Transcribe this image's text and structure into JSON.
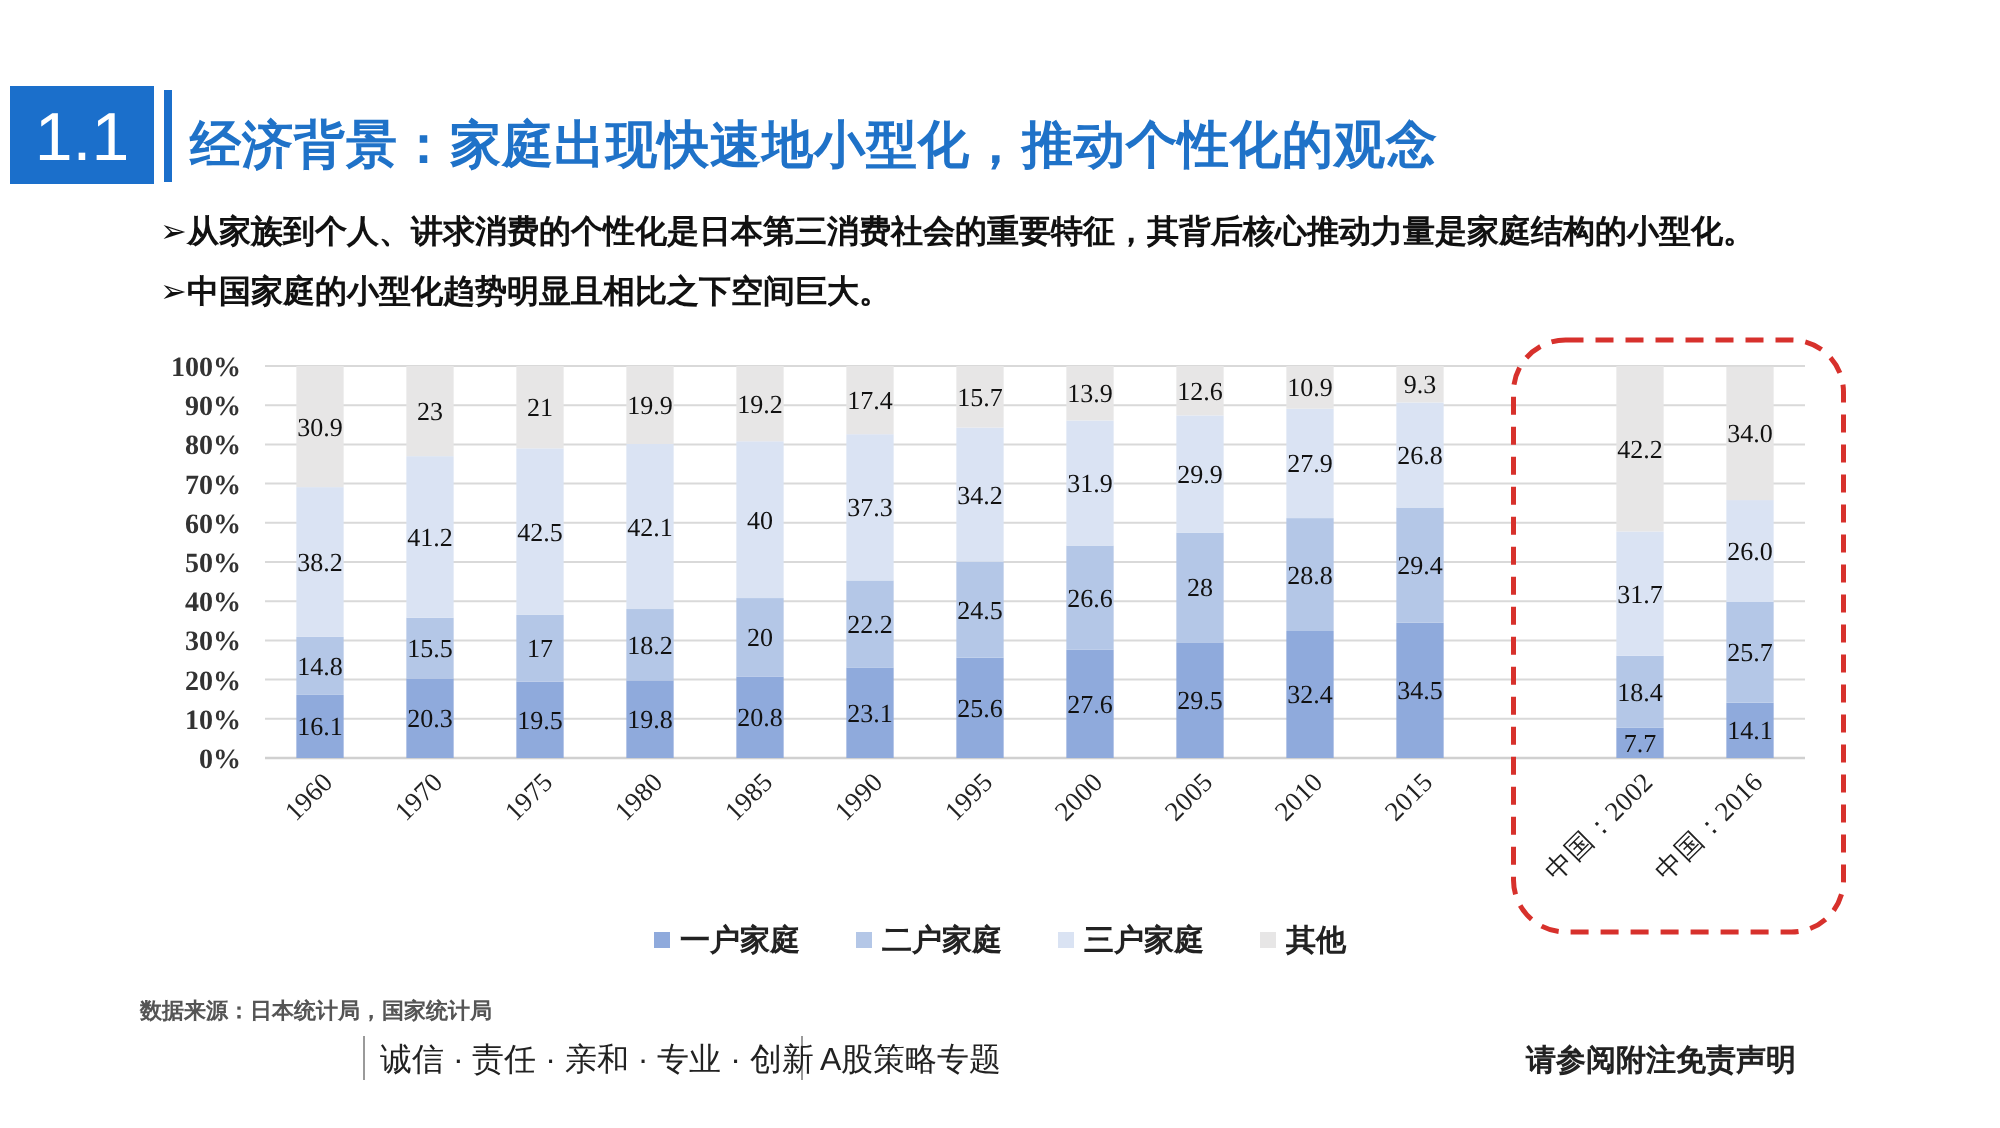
{
  "chart_data": {
    "type": "bar",
    "stacked": true,
    "title": "经济背景：家庭出现快速地小型化，推动个性化的观念",
    "annotations": [
      "1.1",
      "➢从家族到个人、讲求消费的个性化是日本第三消费社会的重要特征，其背后核心推动力量是家庭结构的小型化。",
      "➢中国家庭的小型化趋势明显且相比之下空间巨大。",
      "数据来源：日本统计局，国家统计局",
      "诚信 · 责任 · 亲和 · 专业 · 创新",
      "A股策略专题",
      "请参阅附注免责声明"
    ],
    "categories": [
      "1960",
      "1970",
      "1975",
      "1980",
      "1985",
      "1990",
      "1995",
      "2000",
      "2005",
      "2010",
      "2015",
      null,
      "中国：2002",
      "中国：2016"
    ],
    "series": [
      {
        "name": "一户家庭",
        "color": "#8faadc",
        "values": [
          16.1,
          20.3,
          19.5,
          19.8,
          20.8,
          23.1,
          25.6,
          27.6,
          29.5,
          32.4,
          34.5,
          null,
          7.7,
          14.1
        ],
        "value_labels": [
          "16.1",
          "20.3",
          "19.5",
          "19.8",
          "20.8",
          "23.1",
          "25.6",
          "27.6",
          "29.5",
          "32.4",
          "34.5",
          null,
          "7.7",
          "14.1"
        ]
      },
      {
        "name": "二户家庭",
        "color": "#b4c7e7",
        "values": [
          14.8,
          15.5,
          17,
          18.2,
          20,
          22.2,
          24.5,
          26.6,
          28,
          28.8,
          29.4,
          null,
          18.4,
          25.7
        ],
        "value_labels": [
          "14.8",
          "15.5",
          "17",
          "18.2",
          "20",
          "22.2",
          "24.5",
          "26.6",
          "28",
          "28.8",
          "29.4",
          null,
          "18.4",
          "25.7"
        ]
      },
      {
        "name": "三户家庭",
        "color": "#dae3f3",
        "values": [
          38.2,
          41.2,
          42.5,
          42.1,
          40,
          37.3,
          34.2,
          31.9,
          29.9,
          27.9,
          26.8,
          null,
          31.7,
          26.0
        ],
        "value_labels": [
          "38.2",
          "41.2",
          "42.5",
          "42.1",
          "40",
          "37.3",
          "34.2",
          "31.9",
          "29.9",
          "27.9",
          "26.8",
          null,
          "31.7",
          "26.0"
        ]
      },
      {
        "name": "其他",
        "color": "#e7e6e6",
        "values": [
          30.9,
          23,
          21,
          19.9,
          19.2,
          17.4,
          15.7,
          13.9,
          12.6,
          10.9,
          9.3,
          null,
          42.2,
          34.0
        ],
        "value_labels": [
          "30.9",
          "23",
          "21",
          "19.9",
          "19.2",
          "17.4",
          "15.7",
          "13.9",
          "12.6",
          "10.9",
          "9.3",
          null,
          "42.2",
          "34.0"
        ]
      }
    ],
    "ylim": [
      0,
      100
    ],
    "yticks": [
      {
        "value": 0,
        "label": "0%"
      },
      {
        "value": 10,
        "label": "10%"
      },
      {
        "value": 20,
        "label": "20%"
      },
      {
        "value": 30,
        "label": "30%"
      },
      {
        "value": 40,
        "label": "40%"
      },
      {
        "value": 50,
        "label": "50%"
      },
      {
        "value": 60,
        "label": "60%"
      },
      {
        "value": 70,
        "label": "70%"
      },
      {
        "value": 80,
        "label": "80%"
      },
      {
        "value": 90,
        "label": "90%"
      },
      {
        "value": 100,
        "label": "100%"
      }
    ],
    "grid": "y",
    "legend": "bottom"
  }
}
